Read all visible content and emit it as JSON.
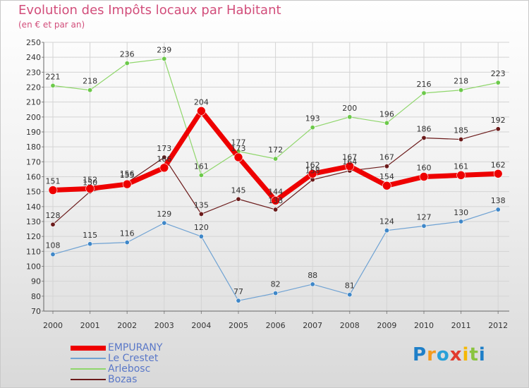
{
  "chart_data": {
    "type": "line",
    "title": "Evolution des Impôts locaux par Habitant",
    "subtitle": "(en € et par an)",
    "xlabel": "",
    "ylabel": "",
    "categories": [
      "2000",
      "2001",
      "2002",
      "2003",
      "2004",
      "2005",
      "2006",
      "2007",
      "2008",
      "2009",
      "2010",
      "2011",
      "2012"
    ],
    "ylim": [
      70,
      250
    ],
    "yticks": [
      70,
      80,
      90,
      100,
      110,
      120,
      130,
      140,
      150,
      160,
      170,
      180,
      190,
      200,
      210,
      220,
      230,
      240,
      250
    ],
    "grid": true,
    "legend_position": "bottom-left",
    "series": [
      {
        "name": "Bozas",
        "color": "#6b1a1a",
        "values": [
          128,
          150,
          156,
          173,
          135,
          145,
          138,
          158,
          164,
          167,
          186,
          185,
          192
        ]
      },
      {
        "name": "Le Crestet",
        "color": "#6fa2d3",
        "values": [
          108,
          115,
          116,
          129,
          120,
          77,
          82,
          88,
          81,
          124,
          127,
          130,
          138
        ]
      },
      {
        "name": "Arlebosc",
        "color": "#8fd66b",
        "values": [
          221,
          218,
          236,
          239,
          161,
          177,
          172,
          193,
          200,
          196,
          216,
          218,
          223
        ]
      },
      {
        "name": "EMPURANY",
        "color": "#ee0000",
        "values": [
          151,
          152,
          155,
          166,
          204,
          173,
          144,
          162,
          167,
          154,
          160,
          161,
          162
        ]
      }
    ]
  },
  "legend": {
    "items": [
      {
        "label": "EMPURANY",
        "color": "#ee0000"
      },
      {
        "label": "Le Crestet",
        "color": "#6fa2d3"
      },
      {
        "label": "Arlebosc",
        "color": "#8fd66b"
      },
      {
        "label": "Bozas",
        "color": "#6b1a1a"
      }
    ]
  },
  "logo": {
    "text": "Proxiti"
  }
}
